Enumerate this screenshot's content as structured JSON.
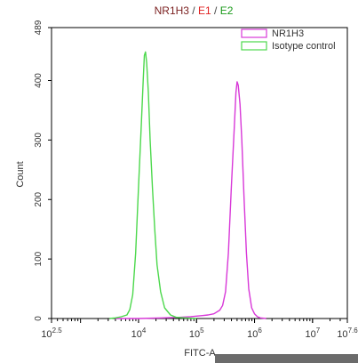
{
  "chart_data": {
    "type": "area",
    "title_parts": [
      {
        "text": "NR1H3",
        "color": "#7a1f1f"
      },
      {
        "text": " / ",
        "color": "#444444"
      },
      {
        "text": "E1",
        "color": "#e02020"
      },
      {
        "text": " / ",
        "color": "#444444"
      },
      {
        "text": "E2",
        "color": "#1a9a1a"
      }
    ],
    "xlabel": "FITC-A",
    "ylabel": "Count",
    "x_scale": "log",
    "xlim_log10": [
      2.5,
      7.6
    ],
    "ylim": [
      0,
      489
    ],
    "x_ticks": [
      {
        "base": "10",
        "exp": "2.5",
        "log": 2.5
      },
      {
        "base": "10",
        "exp": "4",
        "log": 4
      },
      {
        "base": "10",
        "exp": "5",
        "log": 5
      },
      {
        "base": "10",
        "exp": "6",
        "log": 6
      },
      {
        "base": "10",
        "exp": "7",
        "log": 7
      },
      {
        "base": "10",
        "exp": "7.6",
        "log": 7.6
      }
    ],
    "y_ticks": [
      0,
      100,
      200,
      300,
      400,
      489
    ],
    "legend_position": "top-right",
    "series": [
      {
        "name": "NR1H3",
        "color": "#d838d8",
        "points": [
          [
            3.6,
            0
          ],
          [
            4.0,
            0
          ],
          [
            4.4,
            1
          ],
          [
            4.7,
            2
          ],
          [
            4.9,
            3
          ],
          [
            5.0,
            4
          ],
          [
            5.1,
            5
          ],
          [
            5.2,
            6
          ],
          [
            5.3,
            8
          ],
          [
            5.4,
            14
          ],
          [
            5.45,
            22
          ],
          [
            5.5,
            45
          ],
          [
            5.55,
            110
          ],
          [
            5.6,
            220
          ],
          [
            5.65,
            320
          ],
          [
            5.68,
            380
          ],
          [
            5.7,
            398
          ],
          [
            5.72,
            392
          ],
          [
            5.75,
            360
          ],
          [
            5.78,
            300
          ],
          [
            5.82,
            200
          ],
          [
            5.86,
            110
          ],
          [
            5.9,
            50
          ],
          [
            5.95,
            18
          ],
          [
            6.0,
            8
          ],
          [
            6.05,
            3
          ],
          [
            6.1,
            1
          ],
          [
            6.2,
            0
          ]
        ]
      },
      {
        "name": "Isotype control",
        "color": "#4cd84c",
        "points": [
          [
            3.5,
            0
          ],
          [
            3.6,
            1
          ],
          [
            3.7,
            3
          ],
          [
            3.8,
            6
          ],
          [
            3.85,
            15
          ],
          [
            3.9,
            40
          ],
          [
            3.95,
            110
          ],
          [
            4.0,
            220
          ],
          [
            4.05,
            330
          ],
          [
            4.08,
            400
          ],
          [
            4.1,
            442
          ],
          [
            4.12,
            448
          ],
          [
            4.14,
            430
          ],
          [
            4.17,
            380
          ],
          [
            4.2,
            300
          ],
          [
            4.24,
            220
          ],
          [
            4.28,
            150
          ],
          [
            4.32,
            90
          ],
          [
            4.38,
            45
          ],
          [
            4.45,
            18
          ],
          [
            4.55,
            6
          ],
          [
            4.65,
            2
          ],
          [
            4.8,
            1
          ],
          [
            5.0,
            0
          ]
        ]
      }
    ]
  }
}
